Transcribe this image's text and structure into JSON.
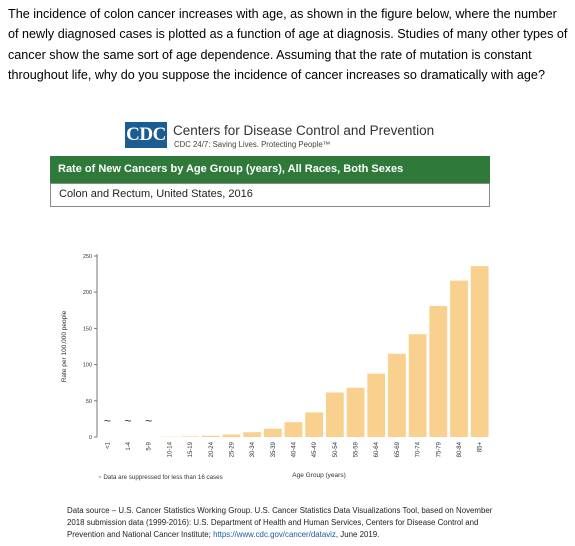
{
  "question": {
    "text": "The incidence of colon cancer increases with age, as shown in the figure below, where the number of newly diagnosed cases is plotted as a function of age at diagnosis.  Studies of many other types of cancer show the same sort of age dependence.  Assuming that the rate of mutation is constant throughout life, why do you suppose the incidence of cancer increases so dramatically with age?"
  },
  "header": {
    "logo_text": "CDC",
    "org_name": "Centers for Disease Control and Prevention",
    "tagline": "CDC 24/7: Saving Lives. Protecting People™"
  },
  "band": {
    "title": "Rate of New Cancers by Age Group (years), All Races, Both Sexes"
  },
  "subtitle": "Colon and Rectum, United States, 2016",
  "colors": {
    "bar": "#f9d08e",
    "band": "#2f7a3b",
    "logo": "#1b5d93"
  },
  "footnote": "~ Data are suppressed for less than 16 cases",
  "source": {
    "text": "Data source – U.S. Cancer Statistics Working Group. U.S. Cancer Statistics Data Visualizations Tool, based on November 2018 submission data (1999-2016): U.S. Department of Health and Human Services, Centers for Disease Control and Prevention and National Cancer Institute;",
    "link": "https://www.cdc.gov/cancer/dataviz",
    "suffix": ", June 2019."
  },
  "chart_data": {
    "type": "bar",
    "title": "Rate of New Cancers by Age Group (years), All Races, Both Sexes",
    "subtitle": "Colon and Rectum, United States, 2016",
    "xlabel": "Age Group (years)",
    "ylabel": "Rate per 100,000 people",
    "ylim": [
      0,
      250
    ],
    "yticks": [
      0,
      50,
      100,
      150,
      200,
      250
    ],
    "grid": false,
    "categories": [
      "<1",
      "1-4",
      "5-9",
      "10-14",
      "15-19",
      "20-24",
      "25-29",
      "30-34",
      "35-39",
      "40-44",
      "45-49",
      "50-54",
      "55-59",
      "60-64",
      "65-69",
      "70-74",
      "75-79",
      "80-84",
      "85+"
    ],
    "values": [
      null,
      null,
      null,
      0.4,
      0.8,
      1.7,
      3.5,
      6.6,
      11.5,
      20.5,
      34,
      61.5,
      68,
      87.5,
      115,
      142,
      181,
      216,
      236
    ],
    "suppressed_marker": "~"
  }
}
